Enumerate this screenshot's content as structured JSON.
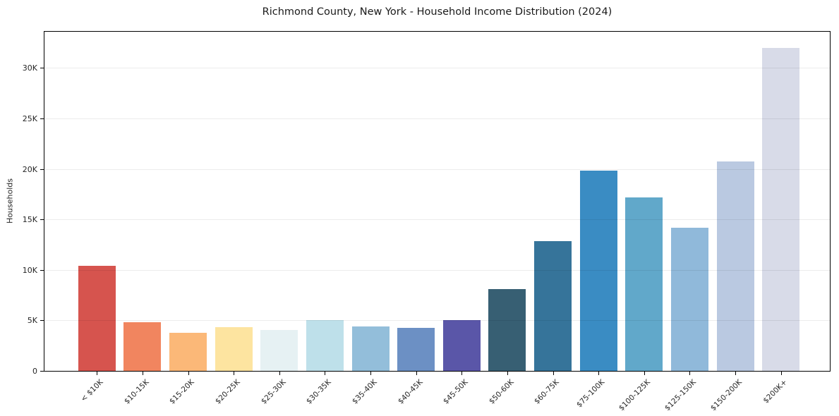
{
  "chart_data": {
    "type": "bar",
    "title": "Richmond County, New York - Household Income Distribution (2024)",
    "xlabel": "",
    "ylabel": "Households",
    "categories": [
      "< $10K",
      "$10-15K",
      "$15-20K",
      "$20-25K",
      "$25-30K",
      "$30-35K",
      "$35-40K",
      "$40-45K",
      "$45-50K",
      "$50-60K",
      "$60-75K",
      "$75-100K",
      "$100-125K",
      "$125-150K",
      "$150-200K",
      "$200K+"
    ],
    "values": [
      10400,
      4800,
      3750,
      4350,
      4050,
      5000,
      4400,
      4250,
      5050,
      8100,
      12850,
      19850,
      17200,
      14150,
      20750,
      32000
    ],
    "bar_colors": [
      "#d6544e",
      "#f1855f",
      "#fbb878",
      "#fde4a0",
      "#e6f1f3",
      "#bee0ea",
      "#93beda",
      "#6c90c4",
      "#5a56a8",
      "#375f73",
      "#36749a",
      "#3a8cc3",
      "#61a8ca",
      "#90b9da",
      "#bac9e1",
      "#d8dbe8"
    ],
    "ylim": [
      0,
      33720
    ],
    "yticks": {
      "values": [
        0,
        5000,
        10000,
        15000,
        20000,
        25000,
        30000
      ],
      "labels": [
        "0",
        "5K",
        "10K",
        "15K",
        "20K",
        "25K",
        "30K"
      ]
    },
    "grid": "horizontal",
    "grid_color": "rgba(0,0,0,0.075)",
    "spine_color": "#000000",
    "background_color": "#ffffff",
    "legend": "none"
  }
}
